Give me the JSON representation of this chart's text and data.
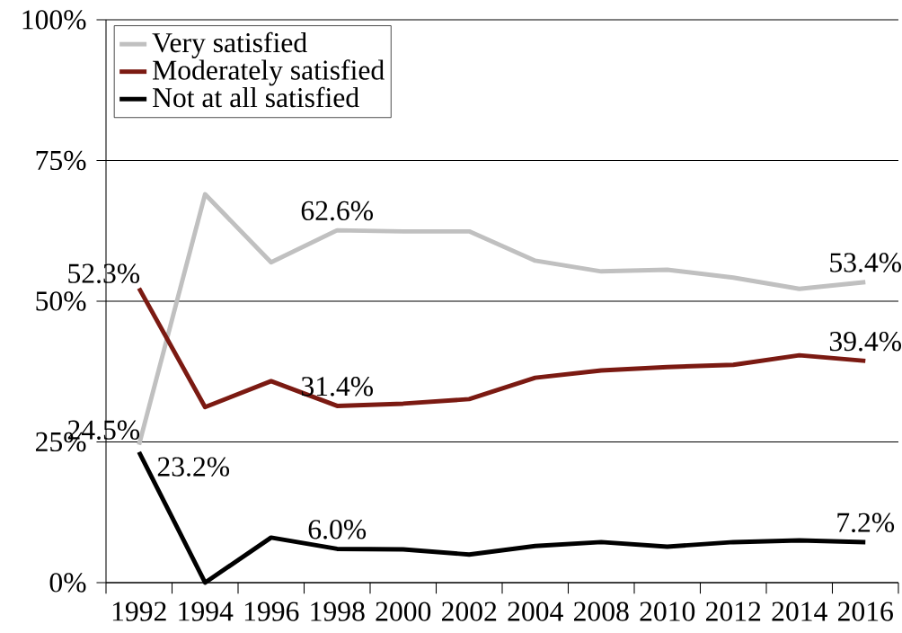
{
  "chart_data": {
    "type": "line",
    "categories": [
      "1992",
      "1994",
      "1996",
      "1998",
      "2000",
      "2002",
      "2004",
      "2008",
      "2010",
      "2012",
      "2014",
      "2016"
    ],
    "series": [
      {
        "name": "Very satisfied",
        "color": "#c0c0c0",
        "values": [
          24.5,
          69.0,
          56.9,
          62.6,
          62.4,
          62.4,
          57.2,
          55.3,
          55.6,
          54.2,
          52.2,
          53.4
        ],
        "value_labels": [
          "24.5%",
          null,
          null,
          "62.6%",
          null,
          null,
          null,
          null,
          null,
          null,
          null,
          "53.4%"
        ]
      },
      {
        "name": "Moderately satisfied",
        "color": "#7b1a12",
        "values": [
          52.3,
          31.2,
          35.8,
          31.4,
          31.8,
          32.6,
          36.4,
          37.7,
          38.3,
          38.7,
          40.4,
          39.4
        ],
        "value_labels": [
          "52.3%",
          null,
          null,
          "31.4%",
          null,
          null,
          null,
          null,
          null,
          null,
          null,
          "39.4%"
        ]
      },
      {
        "name": "Not at all satisfied",
        "color": "#000000",
        "values": [
          23.2,
          0,
          8.0,
          6.0,
          5.9,
          5.0,
          6.5,
          7.2,
          6.4,
          7.2,
          7.5,
          7.2
        ],
        "value_labels": [
          "23.2%",
          null,
          null,
          "6.0%",
          null,
          null,
          null,
          null,
          null,
          null,
          null,
          "7.2%"
        ]
      }
    ],
    "ylim": [
      0,
      100
    ],
    "yticks": [
      {
        "value": 0,
        "label": "0%"
      },
      {
        "value": 25,
        "label": "25%"
      },
      {
        "value": 50,
        "label": "50%"
      },
      {
        "value": 75,
        "label": "75%"
      },
      {
        "value": 100,
        "label": "100%"
      }
    ],
    "grid": "y",
    "legend": "top left",
    "marker": "none",
    "line_style": "solid"
  }
}
